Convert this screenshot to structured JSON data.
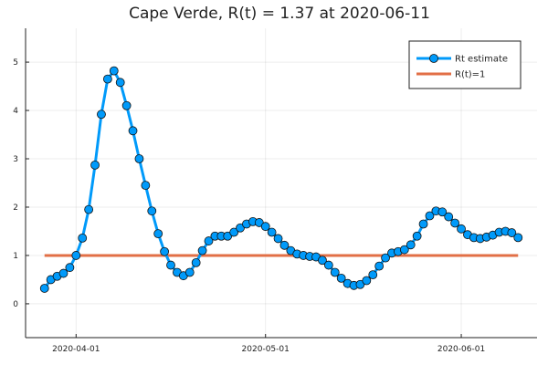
{
  "chart_data": {
    "type": "line",
    "title": "Cape Verde, R(t) = 1.37 at 2020-06-11",
    "xlabel": "",
    "ylabel": "",
    "x_start_date": "2020-03-27",
    "x_step_days": 1,
    "xlim_days": [
      -3,
      78
    ],
    "ylim": [
      -0.7,
      5.7
    ],
    "y_ticks": [
      0,
      1,
      2,
      3,
      4,
      5
    ],
    "y_tick_labels": [
      "0",
      "1",
      "2",
      "3",
      "4",
      "5"
    ],
    "x_ticks": [
      {
        "label": "2020-04-01",
        "day": 5
      },
      {
        "label": "2020-05-01",
        "day": 35
      },
      {
        "label": "2020-06-01",
        "day": 66
      }
    ],
    "grid": true,
    "legend_position": "top-right",
    "series": [
      {
        "name": "Rt estimate",
        "color": "#009AFA",
        "marker": "circle",
        "values": [
          0.32,
          0.5,
          0.57,
          0.63,
          0.75,
          1.0,
          1.36,
          1.95,
          2.87,
          3.92,
          4.65,
          4.82,
          4.58,
          4.1,
          3.58,
          3.0,
          2.45,
          1.92,
          1.45,
          1.08,
          0.8,
          0.65,
          0.58,
          0.65,
          0.85,
          1.1,
          1.3,
          1.4,
          1.4,
          1.4,
          1.48,
          1.57,
          1.65,
          1.7,
          1.68,
          1.6,
          1.48,
          1.35,
          1.21,
          1.1,
          1.03,
          1.0,
          0.98,
          0.97,
          0.9,
          0.8,
          0.65,
          0.53,
          0.42,
          0.38,
          0.4,
          0.48,
          0.6,
          0.78,
          0.95,
          1.05,
          1.08,
          1.12,
          1.22,
          1.4,
          1.65,
          1.82,
          1.92,
          1.9,
          1.8,
          1.67,
          1.55,
          1.43,
          1.37,
          1.35,
          1.38,
          1.42,
          1.48,
          1.5,
          1.47,
          1.37
        ]
      },
      {
        "name": "R(t)=1",
        "color": "#E26F46",
        "values": [
          1.0,
          1.0
        ]
      }
    ]
  }
}
